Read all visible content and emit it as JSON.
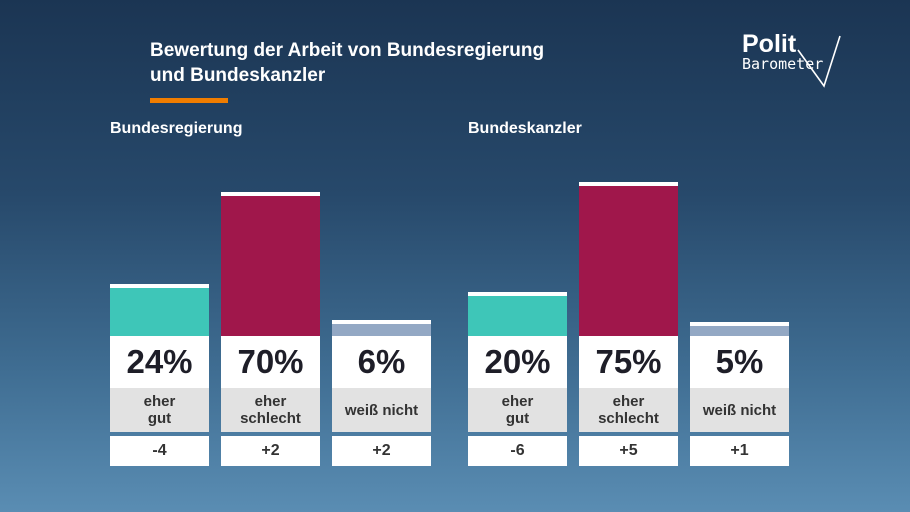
{
  "title_line1": "Bewertung der Arbeit von Bundesregierung",
  "title_line2": "und Bundeskanzler",
  "logo": {
    "line1": "Polit",
    "line2": "Barometer"
  },
  "colors": {
    "positive": "#3ec6b8",
    "negative": "#a0174b",
    "neutral": "#93a8c4",
    "accent": "#f07d00"
  },
  "chart_data": [
    {
      "type": "bar",
      "title": "Bundesregierung",
      "categories": [
        "eher gut",
        "eher schlecht",
        "weiß nicht"
      ],
      "values": [
        24,
        70,
        6
      ],
      "value_labels": [
        "24%",
        "70%",
        "6%"
      ],
      "category_lines": [
        [
          "eher",
          "gut"
        ],
        [
          "eher",
          "schlecht"
        ],
        [
          "weiß nicht"
        ]
      ],
      "changes": [
        "-4",
        "+2",
        "+2"
      ],
      "ylim": [
        0,
        100
      ]
    },
    {
      "type": "bar",
      "title": "Bundeskanzler",
      "categories": [
        "eher gut",
        "eher schlecht",
        "weiß nicht"
      ],
      "values": [
        20,
        75,
        5
      ],
      "value_labels": [
        "20%",
        "75%",
        "5%"
      ],
      "category_lines": [
        [
          "eher",
          "gut"
        ],
        [
          "eher",
          "schlecht"
        ],
        [
          "weiß nicht"
        ]
      ],
      "changes": [
        "-6",
        "+5",
        "+1"
      ],
      "ylim": [
        0,
        100
      ]
    }
  ]
}
